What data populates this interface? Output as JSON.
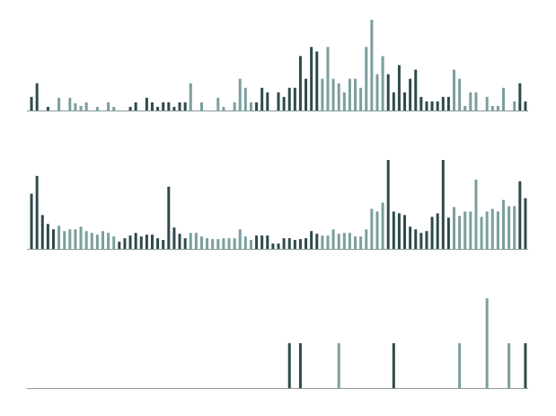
{
  "chart_data": [
    {
      "type": "bar",
      "values": [
        15,
        30,
        0,
        4,
        0,
        14,
        0,
        14,
        8,
        5,
        9,
        0,
        4,
        0,
        9,
        4,
        0,
        0,
        4,
        9,
        0,
        14,
        9,
        4,
        9,
        9,
        4,
        9,
        9,
        30,
        0,
        9,
        0,
        0,
        14,
        4,
        0,
        9,
        35,
        25,
        9,
        9,
        25,
        20,
        0,
        20,
        15,
        25,
        25,
        60,
        35,
        70,
        65,
        35,
        70,
        35,
        30,
        20,
        35,
        35,
        25,
        70,
        100,
        40,
        60,
        40,
        20,
        50,
        20,
        35,
        45,
        15,
        10,
        10,
        10,
        15,
        15,
        45,
        35,
        5,
        20,
        20,
        0,
        15,
        5,
        5,
        25,
        0,
        10,
        30,
        10
      ],
      "colors": [
        "#2f4a4b",
        "#2f4a4b",
        "#2f4a4b",
        "#2f4a4b",
        "#2f4a4b",
        "#7b9e9f",
        "#7b9e9f",
        "#7b9e9f",
        "#7b9e9f",
        "#7b9e9f",
        "#7b9e9f",
        "#7b9e9f",
        "#7b9e9f",
        "#7b9e9f",
        "#7b9e9f",
        "#7b9e9f",
        "#2f4a4b",
        "#2f4a4b",
        "#2f4a4b",
        "#2f4a4b",
        "#2f4a4b",
        "#2f4a4b",
        "#2f4a4b",
        "#2f4a4b",
        "#2f4a4b",
        "#2f4a4b",
        "#2f4a4b",
        "#2f4a4b",
        "#2f4a4b",
        "#7b9e9f",
        "#7b9e9f",
        "#7b9e9f",
        "#7b9e9f",
        "#7b9e9f",
        "#7b9e9f",
        "#7b9e9f",
        "#7b9e9f",
        "#7b9e9f",
        "#7b9e9f",
        "#7b9e9f",
        "#7b9e9f",
        "#2f4a4b",
        "#2f4a4b",
        "#2f4a4b",
        "#2f4a4b",
        "#2f4a4b",
        "#2f4a4b",
        "#2f4a4b",
        "#2f4a4b",
        "#2f4a4b",
        "#2f4a4b",
        "#2f4a4b",
        "#2f4a4b",
        "#7b9e9f",
        "#7b9e9f",
        "#7b9e9f",
        "#7b9e9f",
        "#7b9e9f",
        "#7b9e9f",
        "#7b9e9f",
        "#7b9e9f",
        "#7b9e9f",
        "#7b9e9f",
        "#7b9e9f",
        "#7b9e9f",
        "#2f4a4b",
        "#2f4a4b",
        "#2f4a4b",
        "#2f4a4b",
        "#2f4a4b",
        "#2f4a4b",
        "#2f4a4b",
        "#2f4a4b",
        "#2f4a4b",
        "#2f4a4b",
        "#2f4a4b",
        "#2f4a4b",
        "#7b9e9f",
        "#7b9e9f",
        "#7b9e9f",
        "#7b9e9f",
        "#7b9e9f",
        "#7b9e9f",
        "#7b9e9f",
        "#7b9e9f",
        "#7b9e9f",
        "#7b9e9f",
        "#7b9e9f",
        "#7b9e9f",
        "#2f4a4b",
        "#2f4a4b"
      ],
      "ylim": [
        0,
        100
      ]
    },
    {
      "type": "bar",
      "values": [
        62,
        82,
        38,
        28,
        22,
        26,
        20,
        22,
        22,
        25,
        20,
        18,
        16,
        20,
        18,
        14,
        8,
        12,
        15,
        18,
        14,
        16,
        16,
        12,
        10,
        70,
        24,
        17,
        12,
        18,
        18,
        14,
        12,
        11,
        11,
        12,
        12,
        12,
        22,
        14,
        10,
        15,
        15,
        15,
        6,
        6,
        12,
        12,
        10,
        11,
        12,
        20,
        17,
        15,
        15,
        22,
        17,
        18,
        18,
        14,
        14,
        22,
        45,
        42,
        52,
        100,
        42,
        40,
        38,
        25,
        22,
        18,
        20,
        36,
        40,
        100,
        35,
        47,
        37,
        42,
        42,
        78,
        36,
        42,
        45,
        42,
        55,
        48,
        48,
        76,
        57
      ],
      "colors": [
        "#2f4a4b",
        "#2f4a4b",
        "#2f4a4b",
        "#2f4a4b",
        "#2f4a4b",
        "#7b9e9f",
        "#7b9e9f",
        "#7b9e9f",
        "#7b9e9f",
        "#7b9e9f",
        "#7b9e9f",
        "#7b9e9f",
        "#7b9e9f",
        "#7b9e9f",
        "#7b9e9f",
        "#7b9e9f",
        "#2f4a4b",
        "#2f4a4b",
        "#2f4a4b",
        "#2f4a4b",
        "#2f4a4b",
        "#2f4a4b",
        "#2f4a4b",
        "#2f4a4b",
        "#2f4a4b",
        "#2f4a4b",
        "#2f4a4b",
        "#2f4a4b",
        "#2f4a4b",
        "#7b9e9f",
        "#7b9e9f",
        "#7b9e9f",
        "#7b9e9f",
        "#7b9e9f",
        "#7b9e9f",
        "#7b9e9f",
        "#7b9e9f",
        "#7b9e9f",
        "#7b9e9f",
        "#7b9e9f",
        "#7b9e9f",
        "#2f4a4b",
        "#2f4a4b",
        "#2f4a4b",
        "#2f4a4b",
        "#2f4a4b",
        "#2f4a4b",
        "#2f4a4b",
        "#2f4a4b",
        "#2f4a4b",
        "#2f4a4b",
        "#2f4a4b",
        "#2f4a4b",
        "#7b9e9f",
        "#7b9e9f",
        "#7b9e9f",
        "#7b9e9f",
        "#7b9e9f",
        "#7b9e9f",
        "#7b9e9f",
        "#7b9e9f",
        "#7b9e9f",
        "#7b9e9f",
        "#7b9e9f",
        "#7b9e9f",
        "#2f4a4b",
        "#2f4a4b",
        "#2f4a4b",
        "#2f4a4b",
        "#2f4a4b",
        "#2f4a4b",
        "#2f4a4b",
        "#2f4a4b",
        "#2f4a4b",
        "#2f4a4b",
        "#2f4a4b",
        "#2f4a4b",
        "#7b9e9f",
        "#7b9e9f",
        "#7b9e9f",
        "#7b9e9f",
        "#7b9e9f",
        "#7b9e9f",
        "#7b9e9f",
        "#7b9e9f",
        "#7b9e9f",
        "#7b9e9f",
        "#7b9e9f",
        "#7b9e9f",
        "#2f4a4b",
        "#2f4a4b"
      ],
      "ylim": [
        0,
        100
      ]
    },
    {
      "type": "bar",
      "values": [
        0,
        0,
        0,
        0,
        0,
        0,
        0,
        0,
        0,
        0,
        0,
        0,
        0,
        0,
        0,
        0,
        0,
        0,
        0,
        0,
        0,
        0,
        0,
        0,
        0,
        0,
        0,
        0,
        0,
        0,
        0,
        0,
        0,
        0,
        0,
        0,
        0,
        0,
        0,
        0,
        0,
        0,
        0,
        0,
        0,
        0,
        0,
        50,
        0,
        50,
        0,
        0,
        0,
        0,
        0,
        0,
        50,
        0,
        0,
        0,
        0,
        0,
        0,
        0,
        0,
        0,
        50,
        0,
        0,
        0,
        0,
        0,
        0,
        0,
        0,
        0,
        0,
        0,
        50,
        0,
        0,
        0,
        0,
        100,
        0,
        0,
        0,
        50,
        0,
        0,
        50
      ],
      "colors": [
        "#2f4a4b",
        "#2f4a4b",
        "#2f4a4b",
        "#2f4a4b",
        "#2f4a4b",
        "#7b9e9f",
        "#7b9e9f",
        "#7b9e9f",
        "#7b9e9f",
        "#7b9e9f",
        "#7b9e9f",
        "#7b9e9f",
        "#7b9e9f",
        "#7b9e9f",
        "#7b9e9f",
        "#7b9e9f",
        "#2f4a4b",
        "#2f4a4b",
        "#2f4a4b",
        "#2f4a4b",
        "#2f4a4b",
        "#2f4a4b",
        "#2f4a4b",
        "#2f4a4b",
        "#2f4a4b",
        "#2f4a4b",
        "#2f4a4b",
        "#2f4a4b",
        "#2f4a4b",
        "#7b9e9f",
        "#7b9e9f",
        "#7b9e9f",
        "#7b9e9f",
        "#7b9e9f",
        "#7b9e9f",
        "#7b9e9f",
        "#7b9e9f",
        "#7b9e9f",
        "#7b9e9f",
        "#7b9e9f",
        "#7b9e9f",
        "#2f4a4b",
        "#2f4a4b",
        "#2f4a4b",
        "#2f4a4b",
        "#2f4a4b",
        "#2f4a4b",
        "#2f4a4b",
        "#2f4a4b",
        "#2f4a4b",
        "#2f4a4b",
        "#2f4a4b",
        "#2f4a4b",
        "#7b9e9f",
        "#7b9e9f",
        "#7b9e9f",
        "#7b9e9f",
        "#7b9e9f",
        "#7b9e9f",
        "#7b9e9f",
        "#7b9e9f",
        "#7b9e9f",
        "#7b9e9f",
        "#7b9e9f",
        "#7b9e9f",
        "#2f4a4b",
        "#2f4a4b",
        "#2f4a4b",
        "#2f4a4b",
        "#2f4a4b",
        "#2f4a4b",
        "#2f4a4b",
        "#2f4a4b",
        "#2f4a4b",
        "#2f4a4b",
        "#2f4a4b",
        "#2f4a4b",
        "#7b9e9f",
        "#7b9e9f",
        "#7b9e9f",
        "#7b9e9f",
        "#7b9e9f",
        "#7b9e9f",
        "#7b9e9f",
        "#7b9e9f",
        "#7b9e9f",
        "#7b9e9f",
        "#7b9e9f",
        "#7b9e9f",
        "#2f4a4b",
        "#2f4a4b"
      ],
      "ylim": [
        0,
        100
      ]
    }
  ]
}
